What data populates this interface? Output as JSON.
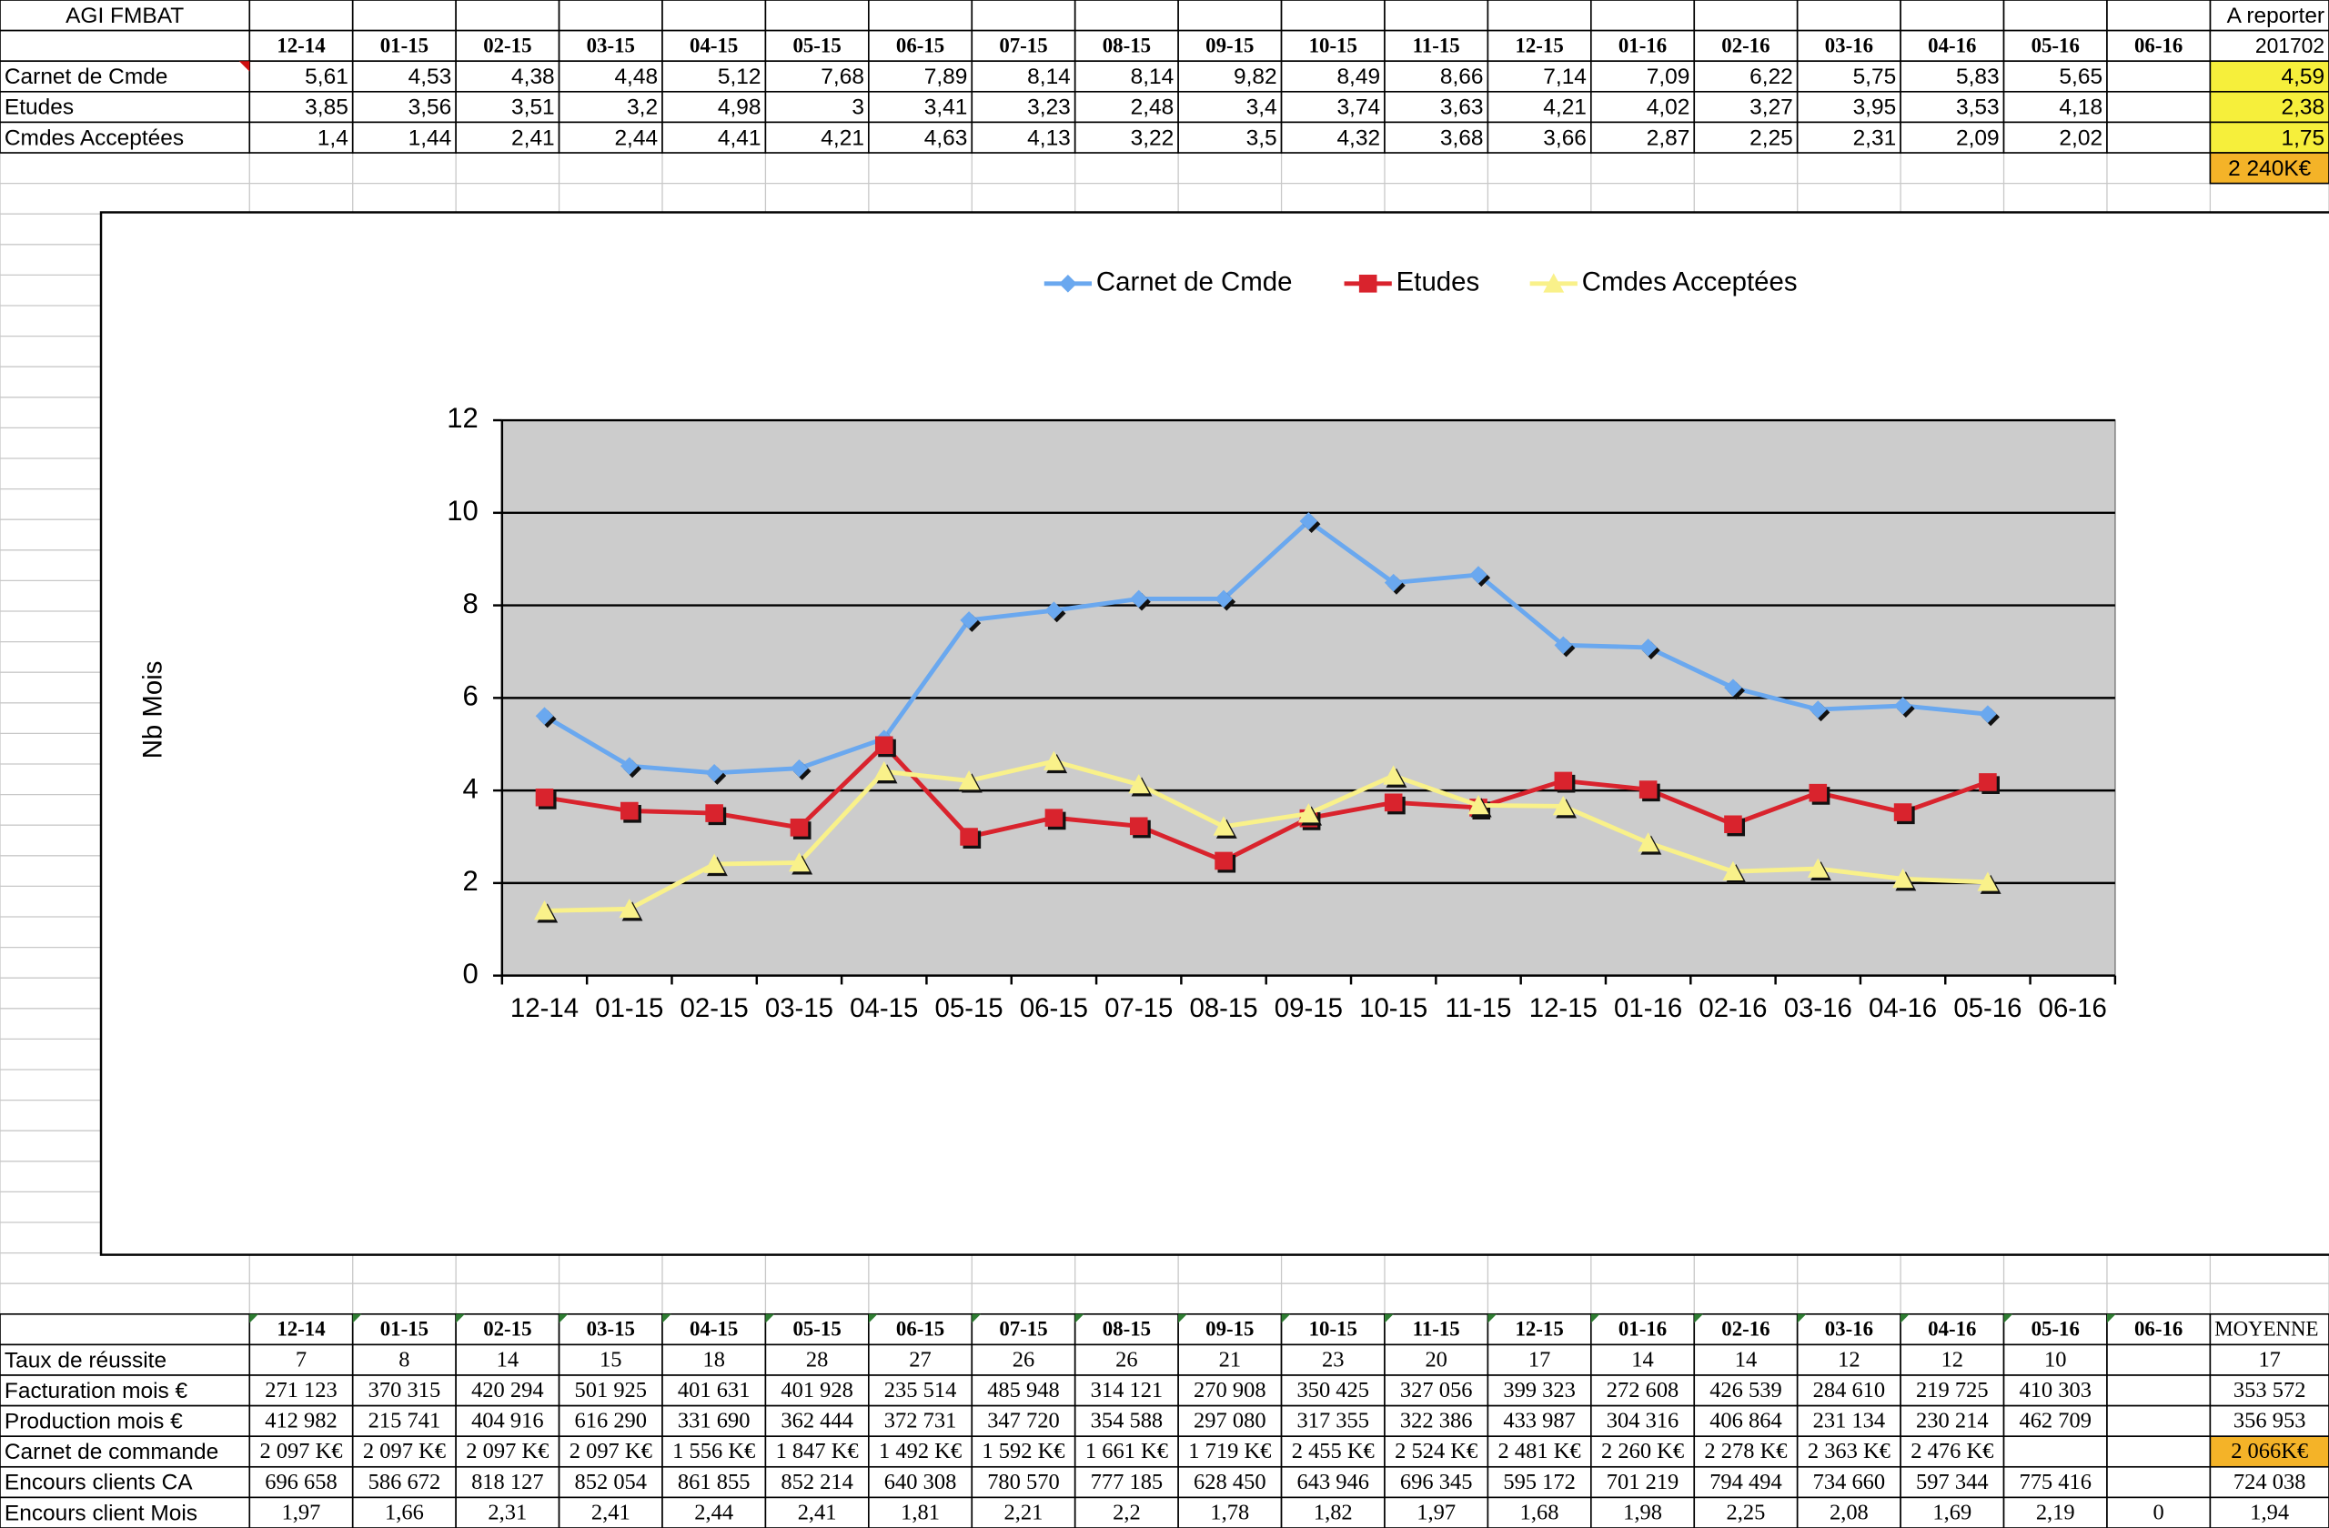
{
  "top_table": {
    "corner": "AGI FMBAT",
    "corner_right": "A reporter",
    "columns": [
      "12-14",
      "01-15",
      "02-15",
      "03-15",
      "04-15",
      "05-15",
      "06-15",
      "07-15",
      "08-15",
      "09-15",
      "10-15",
      "11-15",
      "12-15",
      "01-16",
      "02-16",
      "03-16",
      "04-16",
      "05-16",
      "06-16"
    ],
    "last_header": "201702",
    "rows": [
      {
        "label": "Carnet de Cmde",
        "cells": [
          "5,61",
          "4,53",
          "4,38",
          "4,48",
          "5,12",
          "7,68",
          "7,89",
          "8,14",
          "8,14",
          "9,82",
          "8,49",
          "8,66",
          "7,14",
          "7,09",
          "6,22",
          "5,75",
          "5,83",
          "5,65",
          null
        ],
        "last": "4,59"
      },
      {
        "label": "Etudes",
        "cells": [
          "3,85",
          "3,56",
          "3,51",
          "3,2",
          "4,98",
          "3",
          "3,41",
          "3,23",
          "2,48",
          "3,4",
          "3,74",
          "3,63",
          "4,21",
          "4,02",
          "3,27",
          "3,95",
          "3,53",
          "4,18",
          null
        ],
        "last": "2,38"
      },
      {
        "label": "Cmdes Acceptées",
        "cells": [
          "1,4",
          "1,44",
          "2,41",
          "2,44",
          "4,41",
          "4,21",
          "4,63",
          "4,13",
          "3,22",
          "3,5",
          "4,32",
          "3,68",
          "3,66",
          "2,87",
          "2,25",
          "2,31",
          "2,09",
          "2,02",
          null
        ],
        "last": "1,75"
      }
    ],
    "total": "2 240K€"
  },
  "chart_data": {
    "type": "line",
    "y_label": "Nb Mois",
    "categories": [
      "12-14",
      "01-15",
      "02-15",
      "03-15",
      "04-15",
      "05-15",
      "06-15",
      "07-15",
      "08-15",
      "09-15",
      "10-15",
      "11-15",
      "12-15",
      "01-16",
      "02-16",
      "03-16",
      "04-16",
      "05-16",
      "06-16"
    ],
    "series": [
      {
        "name": "Carnet de Cmde",
        "color": "#6aa8ef",
        "marker": "diamond",
        "values": [
          5.61,
          4.53,
          4.38,
          4.48,
          5.12,
          7.68,
          7.89,
          8.14,
          8.14,
          9.82,
          8.49,
          8.66,
          7.14,
          7.09,
          6.22,
          5.75,
          5.83,
          5.65,
          null
        ]
      },
      {
        "name": "Etudes",
        "color": "#d9232d",
        "marker": "square",
        "values": [
          3.85,
          3.56,
          3.51,
          3.2,
          4.98,
          3,
          3.41,
          3.23,
          2.48,
          3.4,
          3.74,
          3.63,
          4.21,
          4.02,
          3.27,
          3.95,
          3.53,
          4.18,
          null
        ]
      },
      {
        "name": "Cmdes Acceptées",
        "color": "#f9f18a",
        "marker": "triangle",
        "values": [
          1.4,
          1.44,
          2.41,
          2.44,
          4.41,
          4.21,
          4.63,
          4.13,
          3.22,
          3.5,
          4.32,
          3.68,
          3.66,
          2.87,
          2.25,
          2.31,
          2.09,
          2.02,
          null
        ]
      }
    ],
    "ylim": [
      0,
      12
    ],
    "yticks": [
      0,
      2,
      4,
      6,
      8,
      10,
      12
    ],
    "grid": true,
    "legend": "top",
    "plot_background": "#cccccc"
  },
  "bottom_table": {
    "columns": [
      "12-14",
      "01-15",
      "02-15",
      "03-15",
      "04-15",
      "05-15",
      "06-15",
      "07-15",
      "08-15",
      "09-15",
      "10-15",
      "11-15",
      "12-15",
      "01-16",
      "02-16",
      "03-16",
      "04-16",
      "05-16",
      "06-16"
    ],
    "last_header": "MOYENNE",
    "rows": [
      {
        "label": "Taux de réussite",
        "cells": [
          "7",
          "8",
          "14",
          "15",
          "18",
          "28",
          "27",
          "26",
          "26",
          "21",
          "23",
          "20",
          "17",
          "14",
          "14",
          "12",
          "12",
          "10",
          null
        ],
        "last": "17"
      },
      {
        "label": "Facturation mois €",
        "cells": [
          "271 123",
          "370 315",
          "420 294",
          "501 925",
          "401 631",
          "401 928",
          "235 514",
          "485 948",
          "314 121",
          "270 908",
          "350 425",
          "327 056",
          "399 323",
          "272 608",
          "426 539",
          "284 610",
          "219 725",
          "410 303",
          null
        ],
        "last": "353 572"
      },
      {
        "label": "Production mois €",
        "cells": [
          "412 982",
          "215 741",
          "404 916",
          "616 290",
          "331 690",
          "362 444",
          "372 731",
          "347 720",
          "354 588",
          "297 080",
          "317 355",
          "322 386",
          "433 987",
          "304 316",
          "406 864",
          "231 134",
          "230 214",
          "462 709",
          null
        ],
        "last": "356 953"
      },
      {
        "label": "Carnet de commande",
        "cells": [
          "2 097 K€",
          "2 097 K€",
          "2 097 K€",
          "2 097 K€",
          "1 556 K€",
          "1 847 K€",
          "1 492 K€",
          "1 592 K€",
          "1 661 K€",
          "1 719 K€",
          "2 455 K€",
          "2 524 K€",
          "2 481 K€",
          "2 260 K€",
          "2 278 K€",
          "2 363 K€",
          "2 476 K€",
          null,
          null
        ],
        "last": "2 066K€"
      },
      {
        "label": "Encours clients CA",
        "cells": [
          "696 658",
          "586 672",
          "818 127",
          "852 054",
          "861 855",
          "852 214",
          "640 308",
          "780 570",
          "777 185",
          "628 450",
          "643 946",
          "696 345",
          "595 172",
          "701 219",
          "794 494",
          "734 660",
          "597 344",
          "775 416",
          null
        ],
        "last": "724 038"
      },
      {
        "label": "Encours client Mois",
        "cells": [
          "1,97",
          "1,66",
          "2,31",
          "2,41",
          "2,44",
          "2,41",
          "1,81",
          "2,21",
          "2,2",
          "1,78",
          "1,82",
          "1,97",
          "1,68",
          "1,98",
          "2,25",
          "2,08",
          "1,69",
          "2,19",
          "0"
        ],
        "last": "1,94"
      }
    ]
  }
}
